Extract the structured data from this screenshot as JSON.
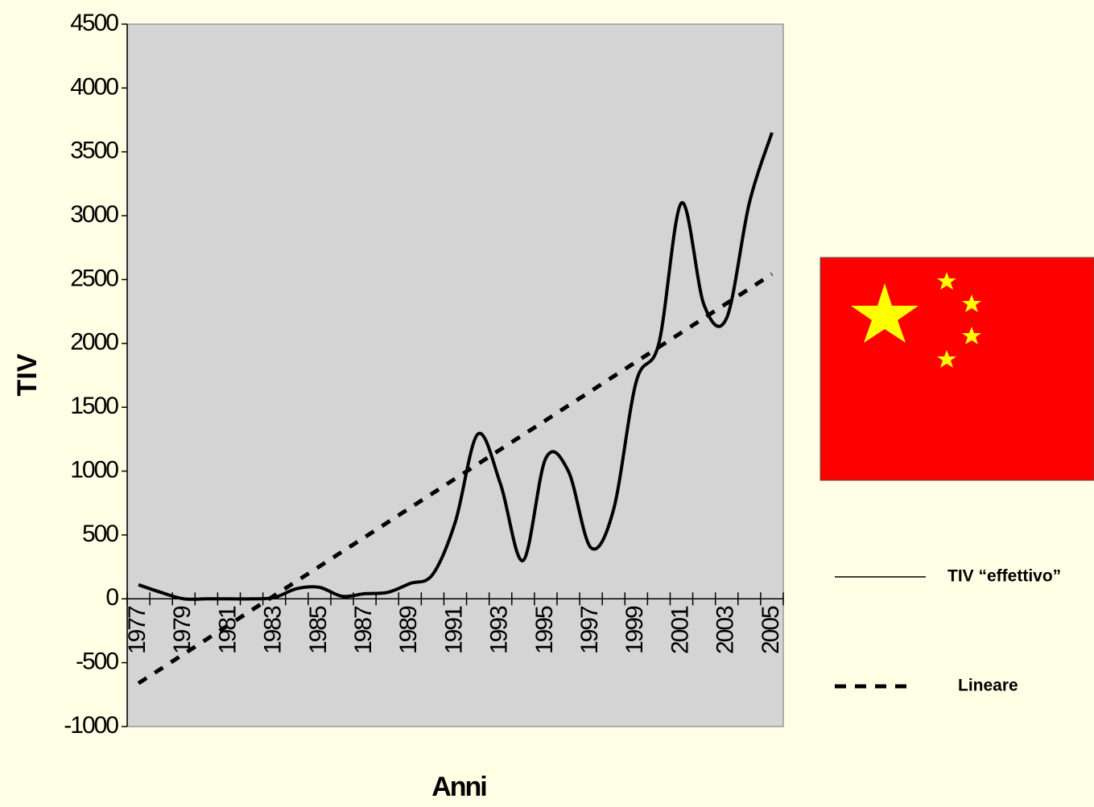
{
  "chart_data": {
    "type": "line",
    "x_label": "Anni",
    "y_label": "TIV",
    "categories": [
      "1977",
      null,
      "1979",
      null,
      "1981",
      null,
      "1983",
      null,
      "1985",
      null,
      "1987",
      null,
      "1989",
      null,
      "1991",
      null,
      "1993",
      null,
      "1995",
      null,
      "1997",
      null,
      "1999",
      null,
      "2001",
      null,
      "2003",
      null,
      "2005"
    ],
    "series": [
      {
        "name": "TIV “effettivo”",
        "color": "#000000",
        "style": "solid",
        "values": [
          110,
          50,
          0,
          0,
          0,
          0,
          10,
          80,
          90,
          20,
          40,
          50,
          120,
          190,
          600,
          1290,
          900,
          300,
          1100,
          1000,
          400,
          700,
          1700,
          2000,
          3100,
          2300,
          2200,
          3100,
          3650
        ]
      },
      {
        "name": "Lineare",
        "color": "#000000",
        "style": "dashed",
        "values": [
          -661,
          -547,
          -432,
          -318,
          -203,
          -89,
          25,
          140,
          254,
          369,
          483,
          597,
          712,
          826,
          941,
          1055,
          1170,
          1284,
          1398,
          1513,
          1627,
          1742,
          1856,
          1971,
          2085,
          2199,
          2314,
          2428,
          2543
        ]
      }
    ],
    "ylim": [
      -1000,
      4500
    ],
    "yticks": [
      -1000,
      -500,
      0,
      500,
      1000,
      1500,
      2000,
      2500,
      3000,
      3500,
      4000,
      4500
    ],
    "grid": false
  }
}
